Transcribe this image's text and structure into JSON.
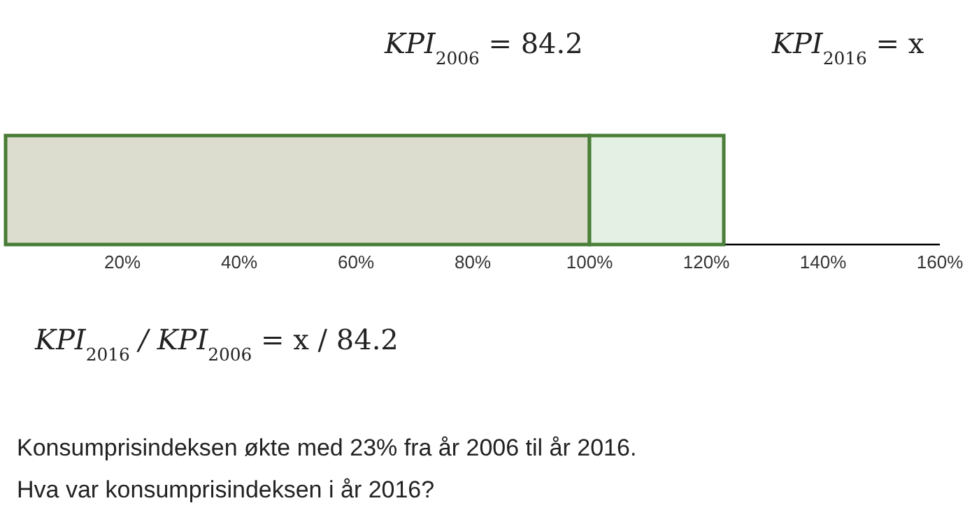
{
  "chart_data": {
    "type": "bar",
    "orientation": "horizontal",
    "stacked": true,
    "categories": [
      null
    ],
    "series": [
      {
        "color": "#dcdccf",
        "values": [
          100
        ]
      },
      {
        "color": "#e4f0e4",
        "values": [
          23
        ]
      }
    ],
    "xlim": [
      0,
      160
    ],
    "xticks": [
      {
        "value": 20,
        "label": "20%"
      },
      {
        "value": 40,
        "label": "40%"
      },
      {
        "value": 60,
        "label": "60%"
      },
      {
        "value": 80,
        "label": "80%"
      },
      {
        "value": 100,
        "label": "100%"
      },
      {
        "value": 120,
        "label": "120%"
      },
      {
        "value": 140,
        "label": "140%"
      },
      {
        "value": 160,
        "label": "160%"
      }
    ],
    "grid": false,
    "tick_labels": "x",
    "annotations": [
      "KPI$_{2006}$ = 84.2",
      "KPI$_{2016}$ = x",
      "KPI$_{2016}$ / KPI$_{2006}$ = x / 84.2",
      "Konsumprisindeksen økte med 23% fra år 2006 til år 2016.",
      "Hva var konsumprisindeksen i år 2016?"
    ]
  }
}
